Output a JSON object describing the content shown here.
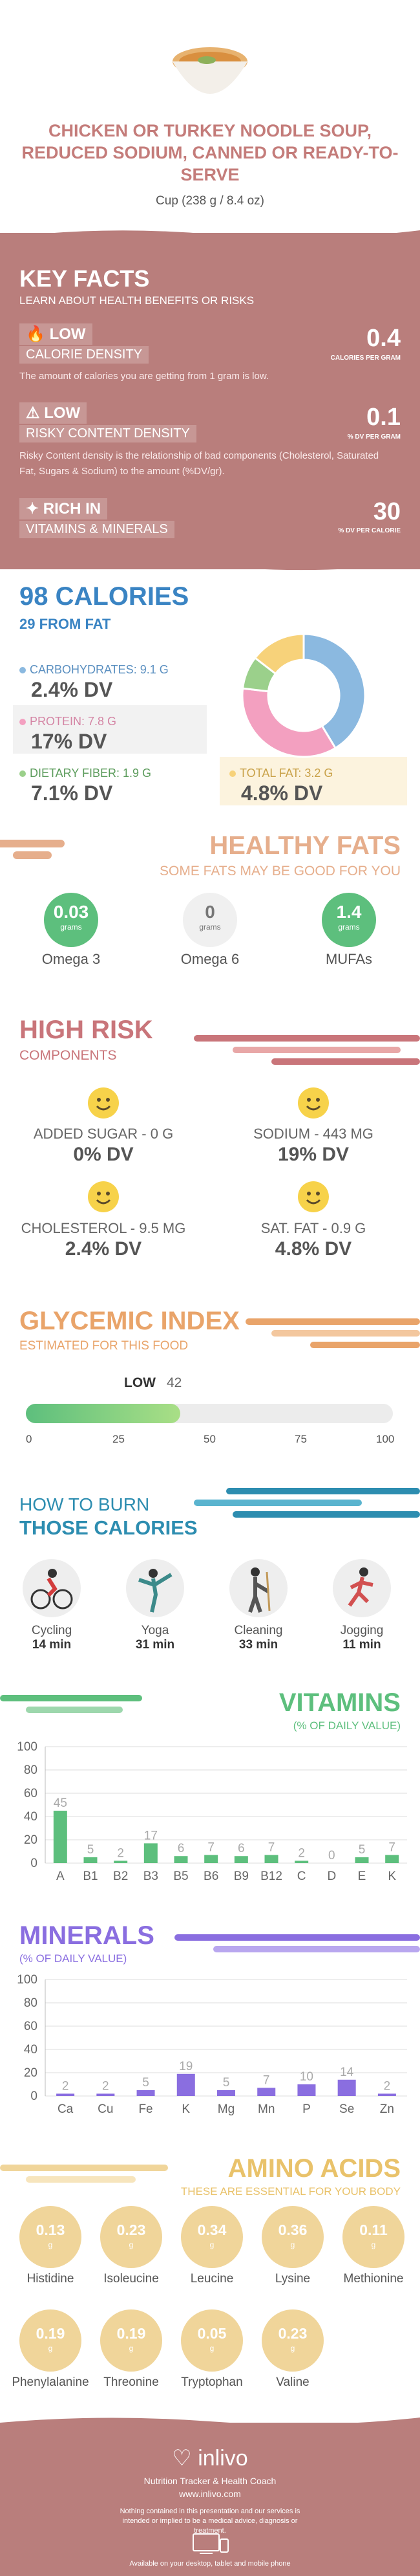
{
  "header": {
    "title": "CHICKEN OR TURKEY NOODLE SOUP, REDUCED SODIUM, CANNED OR READY-TO-SERVE",
    "serving": "Cup (238 g / 8.4 oz)"
  },
  "key_facts": {
    "title": "KEY FACTS",
    "subtitle": "LEARN ABOUT HEALTH BENEFITS OR RISKS",
    "rows": [
      {
        "level": "LOW",
        "name": "CALORIE DENSITY",
        "value": "0.4",
        "unit": "CALORIES PER GRAM",
        "desc": "The amount of calories you are getting from 1 gram is low."
      },
      {
        "level": "LOW",
        "name": "RISKY CONTENT DENSITY",
        "value": "0.1",
        "unit": "% DV PER GRAM",
        "desc": "Risky Content density is the relationship of bad components (Cholesterol, Saturated Fat, Sugars & Sodium) to the amount (%DV/gr)."
      },
      {
        "level": "RICH  IN",
        "name": "VITAMINS & MINERALS",
        "value": "30",
        "unit": "% DV PER CALORIE",
        "desc": ""
      }
    ]
  },
  "calories": {
    "title": "98 CALORIES",
    "subtitle": "29 FROM FAT",
    "carbs_label": "CARBOHYDRATES: 9.1 g",
    "carbs_dv": "2.4% DV",
    "protein_label": "PROTEIN: 7.8 g",
    "protein_dv": "17% DV",
    "fiber_label": "DIETARY FIBER: 1.9 g",
    "fiber_dv": "7.1% DV",
    "fat_label": "TOTAL FAT: 3.2 g",
    "fat_dv": "4.8% DV",
    "colors": {
      "carbs": "#8bb9e0",
      "protein": "#f3a0c0",
      "fiber": "#9bd08b",
      "fat": "#f7d27a"
    },
    "donut": {
      "carbs": 9.1,
      "protein": 7.8,
      "fiber": 1.9,
      "fat": 3.2
    }
  },
  "healthy_fats": {
    "title": "HEALTHY FATS",
    "subtitle": "SOME FATS MAY BE GOOD FOR YOU",
    "items": [
      {
        "value": "0.03",
        "unit": "grams",
        "label": "Omega 3"
      },
      {
        "value": "0",
        "unit": "grams",
        "label": "Omega 6"
      },
      {
        "value": "1.4",
        "unit": "grams",
        "label": "MUFAs"
      }
    ]
  },
  "high_risk": {
    "title": "HIGH RISK",
    "subtitle": "COMPONENTS",
    "items": [
      {
        "label": "ADDED SUGAR - 0 g",
        "dv": "0% DV"
      },
      {
        "label": "SODIUM - 443 mg",
        "dv": "19% DV"
      },
      {
        "label": "CHOLESTEROL - 9.5 mg",
        "dv": "2.4% DV"
      },
      {
        "label": "SAT. FAT - 0.9 g",
        "dv": "4.8% DV"
      }
    ]
  },
  "glycemic": {
    "title": "GLYCEMIC INDEX",
    "subtitle": "ESTIMATED FOR THIS FOOD",
    "level": "LOW",
    "value": 42,
    "ticks": [
      "0",
      "25",
      "50",
      "75",
      "100"
    ]
  },
  "burn": {
    "title1": "HOW TO BURN",
    "title2": "THOSE CALORIES",
    "items": [
      {
        "name": "Cycling",
        "time": "14 min"
      },
      {
        "name": "Yoga",
        "time": "31 min"
      },
      {
        "name": "Cleaning",
        "time": "33 min"
      },
      {
        "name": "Jogging",
        "time": "11 min"
      }
    ]
  },
  "chart_data": [
    {
      "type": "bar",
      "title": "VITAMINS",
      "subtitle": "(% OF DAILY VALUE)",
      "categories": [
        "A",
        "B1",
        "B2",
        "B3",
        "B5",
        "B6",
        "B9",
        "B12",
        "C",
        "D",
        "E",
        "K"
      ],
      "values": [
        45,
        5,
        2,
        17,
        6,
        7,
        6,
        7,
        2,
        0,
        5,
        7
      ],
      "yticks": [
        "0",
        "20",
        "40",
        "60",
        "80",
        "100"
      ],
      "ylim": [
        0,
        100
      ],
      "color": "#5dbf7d"
    },
    {
      "type": "bar",
      "title": "MINERALS",
      "subtitle": "(% OF DAILY VALUE)",
      "categories": [
        "Ca",
        "Cu",
        "Fe",
        "K",
        "Mg",
        "Mn",
        "P",
        "Se",
        "Zn"
      ],
      "values": [
        2,
        2,
        5,
        19,
        5,
        7,
        10,
        14,
        2
      ],
      "yticks": [
        "0",
        "20",
        "40",
        "60",
        "80",
        "100"
      ],
      "ylim": [
        0,
        100
      ],
      "color": "#8a6ee0"
    }
  ],
  "amino": {
    "title": "AMINO ACIDS",
    "subtitle": "THESE ARE ESSENTIAL FOR YOUR BODY",
    "unit": "g",
    "items": [
      {
        "value": "0.13",
        "name": "Histidine"
      },
      {
        "value": "0.23",
        "name": "Isoleucine"
      },
      {
        "value": "0.34",
        "name": "Leucine"
      },
      {
        "value": "0.36",
        "name": "Lysine"
      },
      {
        "value": "0.11",
        "name": "Methionine"
      },
      {
        "value": "0.19",
        "name": "Phenylalanine"
      },
      {
        "value": "0.19",
        "name": "Threonine"
      },
      {
        "value": "0.05",
        "name": "Tryptophan"
      },
      {
        "value": "0.23",
        "name": "Valine"
      }
    ]
  },
  "footer": {
    "brand": "inlivo",
    "tagline": "Nutrition Tracker & Health Coach",
    "url": "www.inlivo.com",
    "disclaimer": "Nothing contained in this presentation and our services is intended or implied to be a medical advice, diagnosis or treatment.",
    "available": "Available on your desktop, tablet and mobile phone"
  }
}
